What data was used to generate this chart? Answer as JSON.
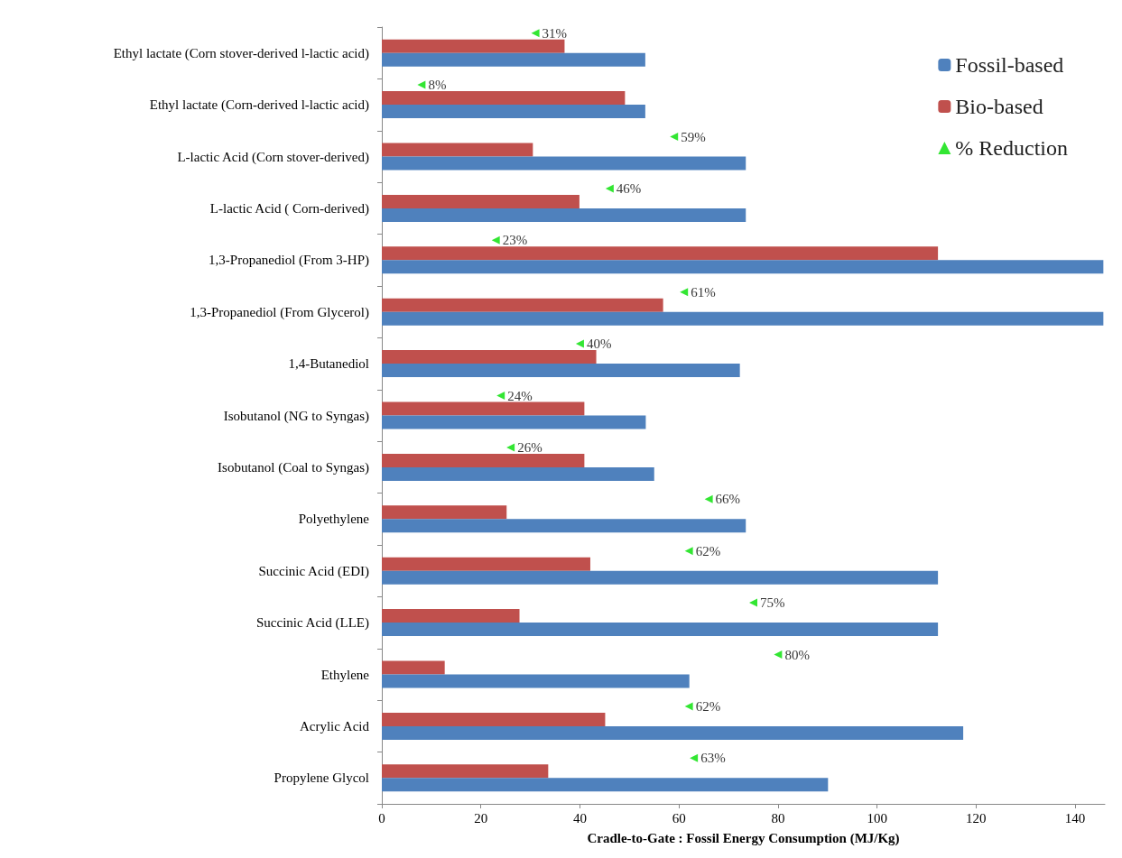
{
  "chart_data": {
    "type": "bar",
    "orientation": "horizontal",
    "xlabel": "Cradle-to-Gate : Fossil Energy Consumption (MJ/Kg)",
    "categories": [
      "Ethyl lactate (Corn stover-derived l-lactic acid)",
      "Ethyl lactate (Corn-derived l-lactic acid)",
      "L-lactic Acid (Corn stover-derived)",
      "L-lactic Acid ( Corn-derived)",
      "1,3-Propanediol (From 3-HP)",
      "1,3-Propanediol (From Glycerol)",
      "1,4-Butanediol",
      "Isobutanol (NG to Syngas)",
      "Isobutanol (Coal to Syngas)",
      "Polyethylene",
      "Succinic Acid (EDI)",
      "Succinic Acid (LLE)",
      "Ethylene",
      "Acrylic Acid",
      "Propylene Glycol"
    ],
    "series": [
      {
        "name": "Fossil-based",
        "color": "#4f81bd",
        "values": [
          53.2,
          53.2,
          73.5,
          73.5,
          145.7,
          145.7,
          72.3,
          53.3,
          55.0,
          73.5,
          112.3,
          112.3,
          62.1,
          117.4,
          90.1
        ]
      },
      {
        "name": "Bio-based",
        "color": "#c0504d",
        "values": [
          36.9,
          49.1,
          30.5,
          39.9,
          112.3,
          56.8,
          43.3,
          40.9,
          40.9,
          25.2,
          42.1,
          27.8,
          12.7,
          45.1,
          33.6
        ]
      },
      {
        "name": "% Reduction",
        "type": "scatter",
        "marker": "triangle",
        "color": "#00e000",
        "values": [
          31,
          8,
          59,
          46,
          23,
          61,
          40,
          24,
          26,
          66,
          62,
          75,
          80,
          62,
          63
        ],
        "value_labels": [
          "31%",
          "8%",
          "59%",
          "46%",
          "23%",
          "61%",
          "40%",
          "24%",
          "26%",
          "66%",
          "62%",
          "75%",
          "80%",
          "62%",
          "63%"
        ]
      }
    ],
    "xlim": [
      0,
      146
    ],
    "xticks": [
      0,
      20,
      40,
      60,
      80,
      100,
      120,
      140
    ],
    "grid": false,
    "legend": "top right"
  }
}
